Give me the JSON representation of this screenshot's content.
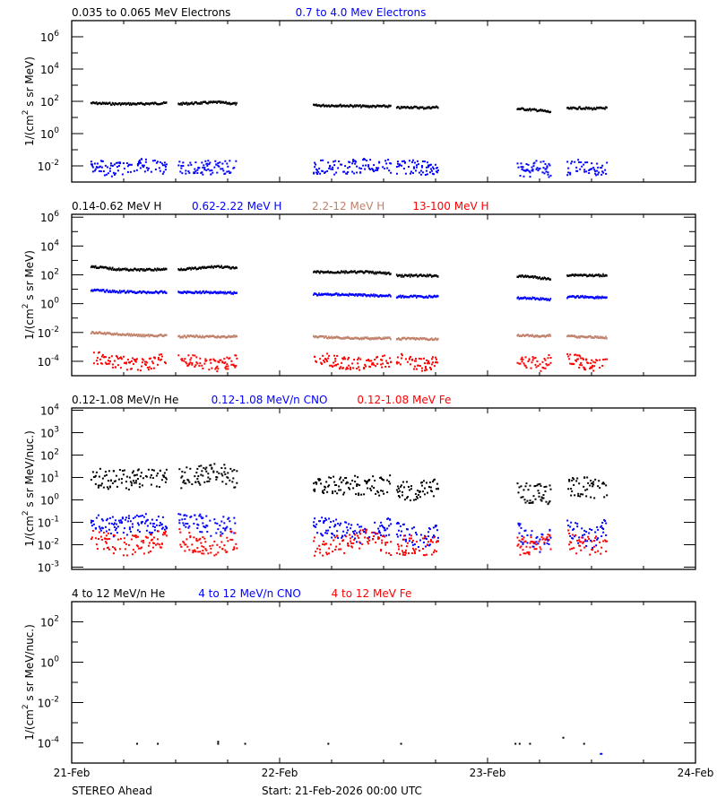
{
  "chart_data": [
    {
      "type": "scatter",
      "panel": 1,
      "legend": [
        {
          "label": "0.035 to 0.065 MeV Electrons",
          "color": "#000000"
        },
        {
          "label": "0.7 to 4.0 Mev Electrons",
          "color": "#0000ff"
        }
      ],
      "ylabel": "1/(cm^2 s sr MeV)",
      "yscale": "log",
      "ylim_exp": [
        -3,
        7
      ],
      "yticks_exp": [
        -2,
        0,
        2,
        4,
        6
      ],
      "series": [
        {
          "name": "0.035 to 0.065 MeV Electrons",
          "color": "#000000",
          "style": "line",
          "segments": [
            {
              "x": [
                0.09,
                0.45
              ],
              "log_y": [
                1.9,
                1.85,
                1.85,
                1.9
              ]
            },
            {
              "x": [
                0.51,
                0.79
              ],
              "log_y": [
                1.85,
                1.9,
                1.95,
                1.85
              ]
            },
            {
              "x": [
                1.16,
                1.53
              ],
              "log_y": [
                1.75,
                1.75,
                1.7,
                1.7
              ]
            },
            {
              "x": [
                1.56,
                1.76
              ],
              "log_y": [
                1.6,
                1.65,
                1.6,
                1.65
              ]
            },
            {
              "x": [
                2.14,
                2.3
              ],
              "log_y": [
                1.55,
                1.5,
                1.45,
                1.35
              ]
            },
            {
              "x": [
                2.38,
                2.57
              ],
              "log_y": [
                1.55,
                1.6,
                1.55,
                1.6
              ]
            }
          ]
        },
        {
          "name": "0.7 to 4.0 Mev Electrons",
          "color": "#0000ff",
          "style": "scatter",
          "segments": [
            {
              "x": [
                0.09,
                0.45
              ],
              "log_y": [
                -2.0,
                -2.2,
                -1.9,
                -2.1
              ]
            },
            {
              "x": [
                0.51,
                0.79
              ],
              "log_y": [
                -2.0,
                -2.1,
                -2.0,
                -2.1
              ]
            },
            {
              "x": [
                1.16,
                1.53
              ],
              "log_y": [
                -2.0,
                -2.1,
                -1.9,
                -2.0
              ]
            },
            {
              "x": [
                1.56,
                1.76
              ],
              "log_y": [
                -2.1,
                -2.0,
                -2.1,
                -2.2
              ]
            },
            {
              "x": [
                2.14,
                2.3
              ],
              "log_y": [
                -2.1,
                -2.2,
                -2.0,
                -2.3
              ]
            },
            {
              "x": [
                2.38,
                2.57
              ],
              "log_y": [
                -2.1,
                -2.0,
                -2.2,
                -2.1
              ]
            }
          ]
        }
      ]
    },
    {
      "type": "scatter",
      "panel": 2,
      "legend": [
        {
          "label": "0.14-0.62 MeV H",
          "color": "#000000"
        },
        {
          "label": "0.62-2.22 MeV H",
          "color": "#0000ff"
        },
        {
          "label": "2.2-12 MeV H",
          "color": "#c0806a"
        },
        {
          "label": "13-100 MeV H",
          "color": "#ff0000"
        }
      ],
      "ylabel": "1/(cm^2 s sr MeV)",
      "yscale": "log",
      "ylim_exp": [
        -5,
        6.2
      ],
      "yticks_exp": [
        -4,
        -2,
        0,
        2,
        4,
        6
      ],
      "series": [
        {
          "name": "0.14-0.62 MeV H",
          "color": "#000000",
          "style": "line",
          "segments": [
            {
              "x": [
                0.09,
                0.45
              ],
              "log_y": [
                2.6,
                2.4,
                2.35,
                2.4
              ]
            },
            {
              "x": [
                0.51,
                0.79
              ],
              "log_y": [
                2.4,
                2.45,
                2.6,
                2.45
              ]
            },
            {
              "x": [
                1.16,
                1.53
              ],
              "log_y": [
                2.2,
                2.2,
                2.2,
                2.1
              ]
            },
            {
              "x": [
                1.56,
                1.76
              ],
              "log_y": [
                1.95,
                1.95,
                1.95,
                1.95
              ]
            },
            {
              "x": [
                2.14,
                2.3
              ],
              "log_y": [
                1.9,
                1.9,
                1.8,
                1.7
              ]
            },
            {
              "x": [
                2.38,
                2.57
              ],
              "log_y": [
                2.0,
                2.0,
                1.95,
                2.0
              ]
            }
          ]
        },
        {
          "name": "0.62-2.22 MeV H",
          "color": "#0000ff",
          "style": "line",
          "segments": [
            {
              "x": [
                0.09,
                0.45
              ],
              "log_y": [
                0.95,
                0.85,
                0.8,
                0.8
              ]
            },
            {
              "x": [
                0.51,
                0.79
              ],
              "log_y": [
                0.8,
                0.8,
                0.8,
                0.75
              ]
            },
            {
              "x": [
                1.16,
                1.53
              ],
              "log_y": [
                0.65,
                0.65,
                0.6,
                0.55
              ]
            },
            {
              "x": [
                1.56,
                1.76
              ],
              "log_y": [
                0.5,
                0.5,
                0.5,
                0.5
              ]
            },
            {
              "x": [
                2.14,
                2.3
              ],
              "log_y": [
                0.4,
                0.4,
                0.35,
                0.3
              ]
            },
            {
              "x": [
                2.38,
                2.57
              ],
              "log_y": [
                0.45,
                0.5,
                0.45,
                0.45
              ]
            }
          ]
        },
        {
          "name": "2.2-12 MeV H",
          "color": "#c0806a",
          "style": "line",
          "segments": [
            {
              "x": [
                0.09,
                0.45
              ],
              "log_y": [
                -2.0,
                -2.1,
                -2.2,
                -2.2
              ]
            },
            {
              "x": [
                0.51,
                0.79
              ],
              "log_y": [
                -2.3,
                -2.25,
                -2.3,
                -2.25
              ]
            },
            {
              "x": [
                1.16,
                1.53
              ],
              "log_y": [
                -2.3,
                -2.35,
                -2.4,
                -2.4
              ]
            },
            {
              "x": [
                1.56,
                1.76
              ],
              "log_y": [
                -2.45,
                -2.4,
                -2.45,
                -2.45
              ]
            },
            {
              "x": [
                2.14,
                2.3
              ],
              "log_y": [
                -2.2,
                -2.2,
                -2.25,
                -2.2
              ]
            },
            {
              "x": [
                2.38,
                2.57
              ],
              "log_y": [
                -2.2,
                -2.3,
                -2.3,
                -2.35
              ]
            }
          ]
        },
        {
          "name": "13-100 MeV H",
          "color": "#ff0000",
          "style": "scatter",
          "segments": [
            {
              "x": [
                0.09,
                0.45
              ],
              "log_y": [
                -3.6,
                -4.0,
                -4.2,
                -3.8
              ]
            },
            {
              "x": [
                0.51,
                0.79
              ],
              "log_y": [
                -3.8,
                -4.0,
                -4.2,
                -3.9
              ]
            },
            {
              "x": [
                1.16,
                1.53
              ],
              "log_y": [
                -3.7,
                -4.0,
                -4.2,
                -3.9
              ]
            },
            {
              "x": [
                1.56,
                1.76
              ],
              "log_y": [
                -3.8,
                -4.0,
                -4.2,
                -3.9
              ]
            },
            {
              "x": [
                2.14,
                2.3
              ],
              "log_y": [
                -3.7,
                -4.0,
                -4.2,
                -3.9
              ]
            },
            {
              "x": [
                2.38,
                2.57
              ],
              "log_y": [
                -3.7,
                -4.0,
                -4.2,
                -3.9
              ]
            }
          ]
        }
      ]
    },
    {
      "type": "scatter",
      "panel": 3,
      "legend": [
        {
          "label": "0.12-1.08 MeV/n He",
          "color": "#000000"
        },
        {
          "label": "0.12-1.08 MeV/n CNO",
          "color": "#0000ff"
        },
        {
          "label": "0.12-1.08 MeV Fe",
          "color": "#ff0000"
        }
      ],
      "ylabel": "1/(cm^2 s sr MeV/nuc.)",
      "yscale": "log",
      "ylim_exp": [
        -3.1,
        4.1
      ],
      "yticks_exp": [
        -3,
        -2,
        -1,
        0,
        1,
        2,
        3,
        4
      ],
      "series": [
        {
          "name": "0.12-1.08 MeV/n He",
          "color": "#000000",
          "style": "scatter",
          "segments": [
            {
              "x": [
                0.09,
                0.45
              ],
              "log_y": [
                1.0,
                0.95,
                0.95,
                1.05
              ]
            },
            {
              "x": [
                0.51,
                0.79
              ],
              "log_y": [
                1.0,
                1.1,
                1.25,
                1.0
              ]
            },
            {
              "x": [
                1.16,
                1.53
              ],
              "log_y": [
                0.7,
                0.7,
                0.65,
                0.7
              ]
            },
            {
              "x": [
                1.56,
                1.76
              ],
              "log_y": [
                0.4,
                0.45,
                0.5,
                0.5
              ]
            },
            {
              "x": [
                2.14,
                2.3
              ],
              "log_y": [
                0.4,
                0.35,
                0.3,
                0.3
              ]
            },
            {
              "x": [
                2.38,
                2.57
              ],
              "log_y": [
                0.6,
                0.65,
                0.55,
                0.5
              ]
            }
          ]
        },
        {
          "name": "0.12-1.08 MeV/n CNO",
          "color": "#0000ff",
          "style": "scatter",
          "segments": [
            {
              "x": [
                0.09,
                0.45
              ],
              "log_y": [
                -0.8,
                -1.2,
                -1.0,
                -1.1
              ]
            },
            {
              "x": [
                0.51,
                0.79
              ],
              "log_y": [
                -0.8,
                -1.0,
                -1.2,
                -1.0
              ]
            },
            {
              "x": [
                1.16,
                1.53
              ],
              "log_y": [
                -1.1,
                -1.3,
                -1.5,
                -1.2
              ]
            },
            {
              "x": [
                1.56,
                1.76
              ],
              "log_y": [
                -1.3,
                -1.5,
                -1.7,
                -1.4
              ]
            },
            {
              "x": [
                2.14,
                2.3
              ],
              "log_y": [
                -1.4,
                -1.6,
                -1.9,
                -1.7
              ]
            },
            {
              "x": [
                2.38,
                2.57
              ],
              "log_y": [
                -1.3,
                -1.5,
                -1.7,
                -1.2
              ]
            }
          ]
        },
        {
          "name": "0.12-1.08 MeV Fe",
          "color": "#ff0000",
          "style": "scatter",
          "segments": [
            {
              "x": [
                0.09,
                0.45
              ],
              "log_y": [
                -1.7,
                -2.0,
                -2.0,
                -1.7
              ]
            },
            {
              "x": [
                0.51,
                0.79
              ],
              "log_y": [
                -1.7,
                -2.0,
                -2.0,
                -1.7
              ]
            },
            {
              "x": [
                1.16,
                1.53
              ],
              "log_y": [
                -2.0,
                -2.0,
                -1.7,
                -2.0
              ]
            },
            {
              "x": [
                1.56,
                1.76
              ],
              "log_y": [
                -2.0,
                -2.0,
                -2.0,
                -2.0
              ]
            },
            {
              "x": [
                2.14,
                2.3
              ],
              "log_y": [
                -2.0,
                -2.0,
                -1.7,
                -2.0
              ]
            },
            {
              "x": [
                2.38,
                2.57
              ],
              "log_y": [
                -1.7,
                -2.0,
                -2.0,
                -2.0
              ]
            }
          ]
        }
      ]
    },
    {
      "type": "scatter",
      "panel": 4,
      "legend": [
        {
          "label": "4 to 12 MeV/n He",
          "color": "#000000"
        },
        {
          "label": "4 to 12 MeV/n CNO",
          "color": "#0000ff"
        },
        {
          "label": "4 to 12 MeV Fe",
          "color": "#ff0000"
        }
      ],
      "ylabel": "1/(cm^2 s sr MeV/nuc.)",
      "yscale": "log",
      "ylim_exp": [
        -5,
        3
      ],
      "yticks_exp": [
        -4,
        -2,
        0,
        2
      ],
      "series": [
        {
          "name": "4 to 12 MeV/n He",
          "color": "#000000",
          "style": "scatter",
          "points": [
            [
              0.31,
              -4.0
            ],
            [
              0.41,
              -4.0
            ],
            [
              0.7,
              -3.9
            ],
            [
              0.7,
              -4.0
            ],
            [
              0.83,
              -4.0
            ],
            [
              1.23,
              -4.0
            ],
            [
              1.58,
              -4.0
            ],
            [
              2.13,
              -4.0
            ],
            [
              2.15,
              -4.0
            ],
            [
              2.2,
              -4.0
            ],
            [
              2.36,
              -3.7
            ],
            [
              2.46,
              -4.0
            ]
          ]
        },
        {
          "name": "4 to 12 MeV/n CNO",
          "color": "#0000ff",
          "style": "scatter",
          "points": [
            [
              2.54,
              -4.5
            ]
          ]
        },
        {
          "name": "4 to 12 MeV Fe",
          "color": "#ff0000",
          "style": "scatter",
          "points": []
        }
      ]
    }
  ],
  "x_axis": {
    "ticks": [
      "21-Feb",
      "22-Feb",
      "23-Feb",
      "24-Feb"
    ],
    "days": 3,
    "minor_ticks_per_day": 8
  },
  "footer": {
    "spacecraft": "STEREO Ahead",
    "start": "Start: 21-Feb-2026 00:00 UTC"
  },
  "ytick_labels": {
    "p1": [
      "10",
      "10",
      "10",
      "10",
      "10"
    ],
    "p1_exp": [
      "-2",
      "0",
      "2",
      "4",
      "6"
    ]
  }
}
